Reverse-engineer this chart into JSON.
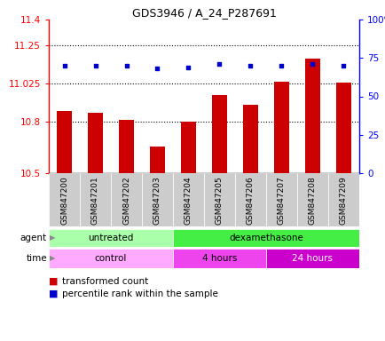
{
  "title": "GDS3946 / A_24_P287691",
  "samples": [
    "GSM847200",
    "GSM847201",
    "GSM847202",
    "GSM847203",
    "GSM847204",
    "GSM847205",
    "GSM847206",
    "GSM847207",
    "GSM847208",
    "GSM847209"
  ],
  "bar_values": [
    10.865,
    10.855,
    10.81,
    10.655,
    10.8,
    10.96,
    10.9,
    11.035,
    11.17,
    11.03
  ],
  "percentile_values": [
    70,
    70,
    70,
    68,
    69,
    71,
    70,
    70,
    71,
    70
  ],
  "ylim_left": [
    10.5,
    11.4
  ],
  "ylim_right": [
    0,
    100
  ],
  "yticks_left": [
    10.5,
    10.8,
    11.025,
    11.25,
    11.4
  ],
  "ytick_labels_left": [
    "10.5",
    "10.8",
    "11.025",
    "11.25",
    "11.4"
  ],
  "yticks_right": [
    0,
    25,
    50,
    75,
    100
  ],
  "ytick_labels_right": [
    "0",
    "25",
    "50",
    "75",
    "100%"
  ],
  "hlines": [
    10.8,
    11.025,
    11.25
  ],
  "bar_color": "#cc0000",
  "dot_color": "#0000cc",
  "agent_untreated_color": "#aaffaa",
  "agent_dex_color": "#44ee44",
  "time_control_color": "#ffaaff",
  "time_4h_color": "#ee44ee",
  "time_24h_color": "#cc00cc",
  "legend_red_label": "transformed count",
  "legend_blue_label": "percentile rank within the sample",
  "bar_width": 0.5,
  "bg_color": "#ffffff",
  "plot_bg": "#ffffff",
  "xlabel_bg": "#cccccc"
}
